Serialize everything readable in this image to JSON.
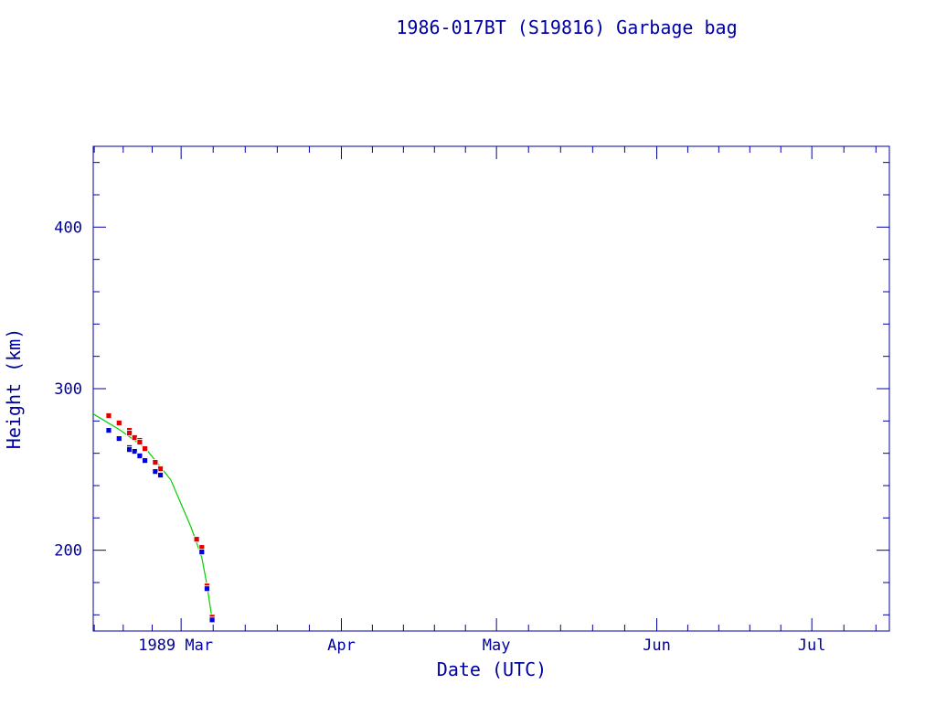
{
  "chart_data": {
    "type": "scatter",
    "title": "1986-017BT (S19816) Garbage bag",
    "xlabel": "Date (UTC)",
    "ylabel": "Height (km)",
    "xlim": [
      "1989-02-12",
      "1989-07-16"
    ],
    "ylim": [
      150,
      450
    ],
    "x_ticks": [
      {
        "date": "1989-03-01",
        "label": "1989 Mar"
      },
      {
        "date": "1989-04-01",
        "label": "Apr"
      },
      {
        "date": "1989-05-01",
        "label": "May"
      },
      {
        "date": "1989-06-01",
        "label": "Jun"
      },
      {
        "date": "1989-07-01",
        "label": "Jul"
      }
    ],
    "y_ticks": [
      200,
      300,
      400
    ],
    "grid": false,
    "colors": {
      "axis": "#0000a0",
      "apogee": "#e00000",
      "perigee": "#0000e0",
      "fit": "#00d000"
    },
    "series": [
      {
        "marker": "square",
        "color": "#e00000",
        "points": [
          [
            "1989-02-15",
            283.3
          ],
          [
            "1989-02-17",
            278.8
          ],
          [
            "1989-02-19",
            274.2
          ],
          [
            "1989-02-19",
            272.5
          ],
          [
            "1989-02-20",
            269.7
          ],
          [
            "1989-02-21",
            268.0
          ],
          [
            "1989-02-21",
            266.9
          ],
          [
            "1989-02-22",
            262.9
          ],
          [
            "1989-02-24",
            254.4
          ],
          [
            "1989-02-25",
            250.4
          ],
          [
            "1989-03-04",
            206.8
          ],
          [
            "1989-03-05",
            201.7
          ],
          [
            "1989-03-06",
            177.9
          ],
          [
            "1989-03-07",
            158.6
          ]
        ]
      },
      {
        "marker": "square",
        "color": "#0000e0",
        "points": [
          [
            "1989-02-15",
            274.2
          ],
          [
            "1989-02-17",
            269.1
          ],
          [
            "1989-02-19",
            263.5
          ],
          [
            "1989-02-19",
            262.3
          ],
          [
            "1989-02-20",
            261.2
          ],
          [
            "1989-02-21",
            258.9
          ],
          [
            "1989-02-21",
            258.4
          ],
          [
            "1989-02-22",
            255.5
          ],
          [
            "1989-02-24",
            248.7
          ],
          [
            "1989-02-25",
            246.5
          ],
          [
            "1989-03-05",
            198.9
          ],
          [
            "1989-03-06",
            176.2
          ],
          [
            "1989-03-07",
            156.9
          ]
        ]
      },
      {
        "marker": "line",
        "color": "#00d000",
        "points": [
          [
            "1989-02-12",
            284.4
          ],
          [
            "1989-02-17",
            274.8
          ],
          [
            "1989-02-22",
            263.5
          ],
          [
            "1989-02-27",
            243.6
          ],
          [
            "1989-03-03",
            213.6
          ],
          [
            "1989-03-05",
            195.5
          ],
          [
            "1989-03-06",
            178.5
          ],
          [
            "1989-03-07",
            157.0
          ]
        ]
      }
    ]
  }
}
